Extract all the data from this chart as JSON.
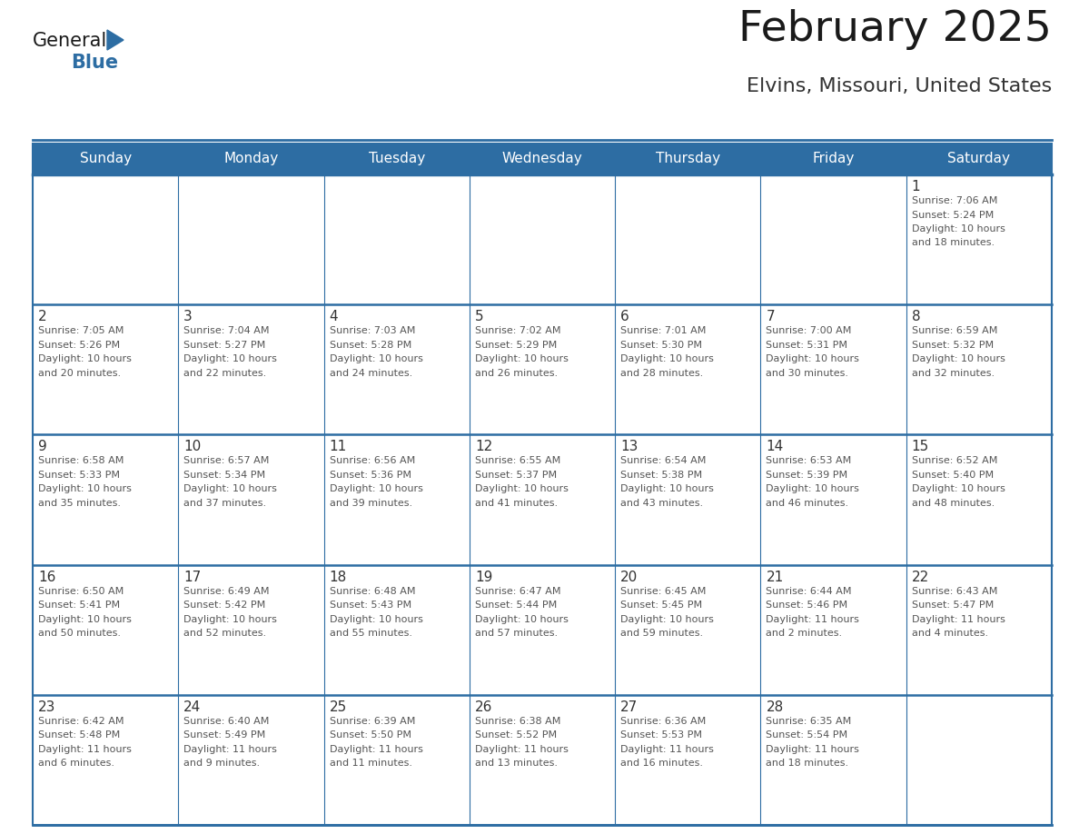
{
  "title": "February 2025",
  "subtitle": "Elvins, Missouri, United States",
  "header_bg": "#2d6da3",
  "header_text_color": "#ffffff",
  "cell_bg": "#ffffff",
  "cell_bg_empty_top": "#f5f5f5",
  "border_color": "#2d6da3",
  "row_divider_color": "#2d6da3",
  "day_headers": [
    "Sunday",
    "Monday",
    "Tuesday",
    "Wednesday",
    "Thursday",
    "Friday",
    "Saturday"
  ],
  "title_color": "#1a1a1a",
  "subtitle_color": "#333333",
  "day_num_color": "#333333",
  "info_color": "#555555",
  "logo_general_color": "#1a1a1a",
  "logo_blue_color": "#2d6da3",
  "weeks": [
    [
      {
        "day": null,
        "info": ""
      },
      {
        "day": null,
        "info": ""
      },
      {
        "day": null,
        "info": ""
      },
      {
        "day": null,
        "info": ""
      },
      {
        "day": null,
        "info": ""
      },
      {
        "day": null,
        "info": ""
      },
      {
        "day": 1,
        "info": "Sunrise: 7:06 AM\nSunset: 5:24 PM\nDaylight: 10 hours\nand 18 minutes."
      }
    ],
    [
      {
        "day": 2,
        "info": "Sunrise: 7:05 AM\nSunset: 5:26 PM\nDaylight: 10 hours\nand 20 minutes."
      },
      {
        "day": 3,
        "info": "Sunrise: 7:04 AM\nSunset: 5:27 PM\nDaylight: 10 hours\nand 22 minutes."
      },
      {
        "day": 4,
        "info": "Sunrise: 7:03 AM\nSunset: 5:28 PM\nDaylight: 10 hours\nand 24 minutes."
      },
      {
        "day": 5,
        "info": "Sunrise: 7:02 AM\nSunset: 5:29 PM\nDaylight: 10 hours\nand 26 minutes."
      },
      {
        "day": 6,
        "info": "Sunrise: 7:01 AM\nSunset: 5:30 PM\nDaylight: 10 hours\nand 28 minutes."
      },
      {
        "day": 7,
        "info": "Sunrise: 7:00 AM\nSunset: 5:31 PM\nDaylight: 10 hours\nand 30 minutes."
      },
      {
        "day": 8,
        "info": "Sunrise: 6:59 AM\nSunset: 5:32 PM\nDaylight: 10 hours\nand 32 minutes."
      }
    ],
    [
      {
        "day": 9,
        "info": "Sunrise: 6:58 AM\nSunset: 5:33 PM\nDaylight: 10 hours\nand 35 minutes."
      },
      {
        "day": 10,
        "info": "Sunrise: 6:57 AM\nSunset: 5:34 PM\nDaylight: 10 hours\nand 37 minutes."
      },
      {
        "day": 11,
        "info": "Sunrise: 6:56 AM\nSunset: 5:36 PM\nDaylight: 10 hours\nand 39 minutes."
      },
      {
        "day": 12,
        "info": "Sunrise: 6:55 AM\nSunset: 5:37 PM\nDaylight: 10 hours\nand 41 minutes."
      },
      {
        "day": 13,
        "info": "Sunrise: 6:54 AM\nSunset: 5:38 PM\nDaylight: 10 hours\nand 43 minutes."
      },
      {
        "day": 14,
        "info": "Sunrise: 6:53 AM\nSunset: 5:39 PM\nDaylight: 10 hours\nand 46 minutes."
      },
      {
        "day": 15,
        "info": "Sunrise: 6:52 AM\nSunset: 5:40 PM\nDaylight: 10 hours\nand 48 minutes."
      }
    ],
    [
      {
        "day": 16,
        "info": "Sunrise: 6:50 AM\nSunset: 5:41 PM\nDaylight: 10 hours\nand 50 minutes."
      },
      {
        "day": 17,
        "info": "Sunrise: 6:49 AM\nSunset: 5:42 PM\nDaylight: 10 hours\nand 52 minutes."
      },
      {
        "day": 18,
        "info": "Sunrise: 6:48 AM\nSunset: 5:43 PM\nDaylight: 10 hours\nand 55 minutes."
      },
      {
        "day": 19,
        "info": "Sunrise: 6:47 AM\nSunset: 5:44 PM\nDaylight: 10 hours\nand 57 minutes."
      },
      {
        "day": 20,
        "info": "Sunrise: 6:45 AM\nSunset: 5:45 PM\nDaylight: 10 hours\nand 59 minutes."
      },
      {
        "day": 21,
        "info": "Sunrise: 6:44 AM\nSunset: 5:46 PM\nDaylight: 11 hours\nand 2 minutes."
      },
      {
        "day": 22,
        "info": "Sunrise: 6:43 AM\nSunset: 5:47 PM\nDaylight: 11 hours\nand 4 minutes."
      }
    ],
    [
      {
        "day": 23,
        "info": "Sunrise: 6:42 AM\nSunset: 5:48 PM\nDaylight: 11 hours\nand 6 minutes."
      },
      {
        "day": 24,
        "info": "Sunrise: 6:40 AM\nSunset: 5:49 PM\nDaylight: 11 hours\nand 9 minutes."
      },
      {
        "day": 25,
        "info": "Sunrise: 6:39 AM\nSunset: 5:50 PM\nDaylight: 11 hours\nand 11 minutes."
      },
      {
        "day": 26,
        "info": "Sunrise: 6:38 AM\nSunset: 5:52 PM\nDaylight: 11 hours\nand 13 minutes."
      },
      {
        "day": 27,
        "info": "Sunrise: 6:36 AM\nSunset: 5:53 PM\nDaylight: 11 hours\nand 16 minutes."
      },
      {
        "day": 28,
        "info": "Sunrise: 6:35 AM\nSunset: 5:54 PM\nDaylight: 11 hours\nand 18 minutes."
      },
      {
        "day": null,
        "info": ""
      }
    ]
  ]
}
